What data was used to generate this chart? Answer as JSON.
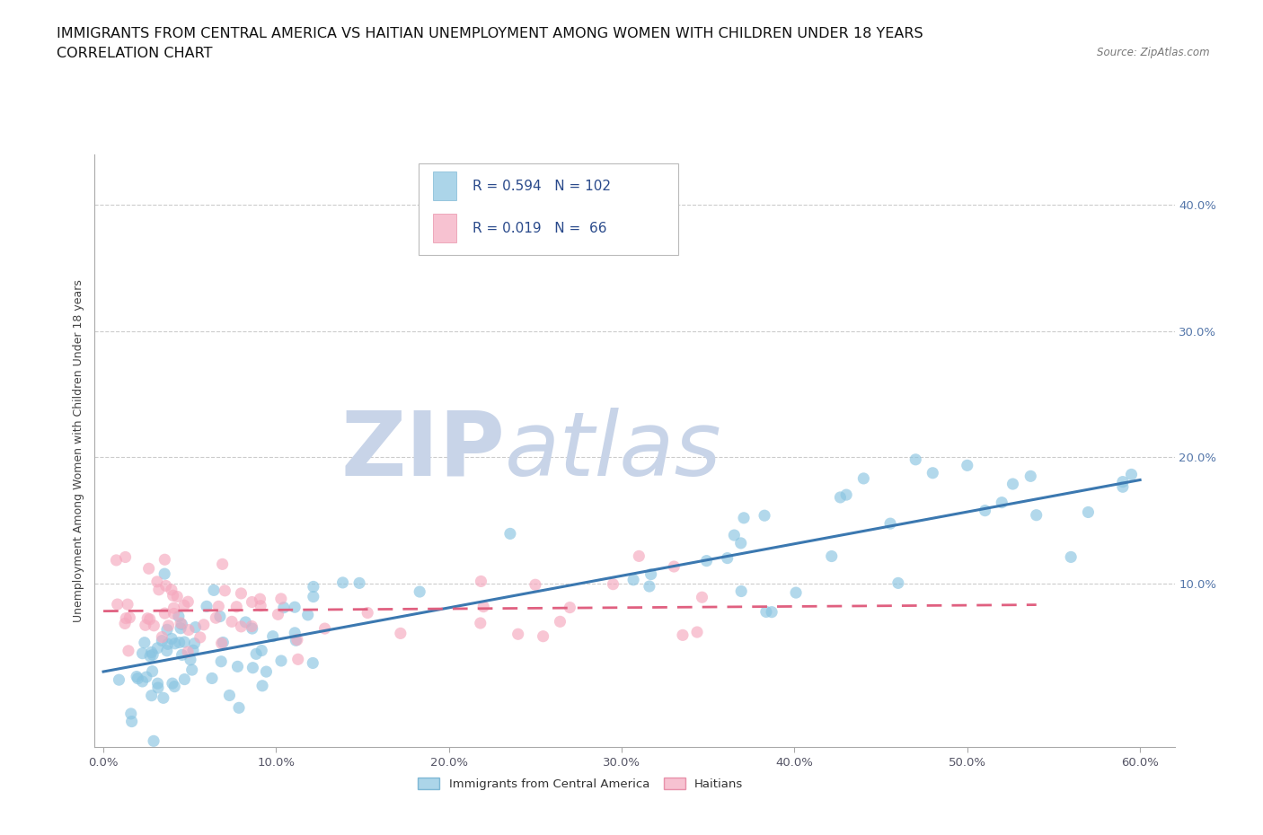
{
  "title_line1": "IMMIGRANTS FROM CENTRAL AMERICA VS HAITIAN UNEMPLOYMENT AMONG WOMEN WITH CHILDREN UNDER 18 YEARS",
  "title_line2": "CORRELATION CHART",
  "source_text": "Source: ZipAtlas.com",
  "ylabel": "Unemployment Among Women with Children Under 18 years",
  "xlim": [
    -0.005,
    0.62
  ],
  "ylim": [
    -0.03,
    0.44
  ],
  "xticks": [
    0.0,
    0.1,
    0.2,
    0.3,
    0.4,
    0.5,
    0.6
  ],
  "xticklabels": [
    "0.0%",
    "10.0%",
    "20.0%",
    "30.0%",
    "40.0%",
    "50.0%",
    "60.0%"
  ],
  "yticks": [
    0.1,
    0.2,
    0.3,
    0.4
  ],
  "yticklabels": [
    "10.0%",
    "20.0%",
    "30.0%",
    "40.0%"
  ],
  "blue_color": "#89c4e1",
  "blue_edge_color": "#5ba3c9",
  "blue_line_color": "#3b78b0",
  "pink_color": "#f5a8be",
  "pink_edge_color": "#e07090",
  "pink_line_color": "#e06080",
  "background_color": "#ffffff",
  "grid_color": "#cccccc",
  "watermark_zip_color": "#c8d4e8",
  "watermark_atlas_color": "#c8d4e8",
  "legend_text_color": "#2a4a8b",
  "title_fontsize": 11.5,
  "subtitle_fontsize": 11.5,
  "axis_label_fontsize": 9,
  "tick_fontsize": 9.5,
  "blue_line_x0": 0.0,
  "blue_line_x1": 0.6,
  "blue_line_y0": 0.03,
  "blue_line_y1": 0.182,
  "pink_line_x0": 0.0,
  "pink_line_x1": 0.54,
  "pink_line_y0": 0.078,
  "pink_line_y1": 0.083,
  "legend_r1_val": "0.594",
  "legend_n1_val": "102",
  "legend_r2_val": "0.019",
  "legend_n2_val": " 66"
}
